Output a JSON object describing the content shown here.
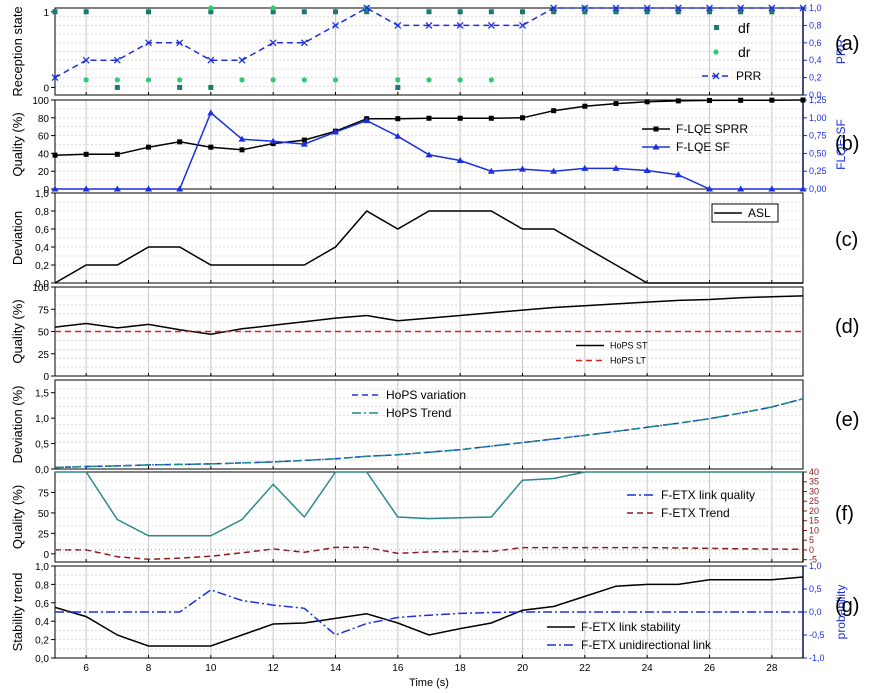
{
  "figure": {
    "xlabel": "Time (s)"
  },
  "chart_data": [
    {
      "type": "scatter",
      "panel_label": "(a)",
      "ylabel": "Reception state",
      "ylabel_right": "PRR",
      "xlim": [
        5,
        29
      ],
      "ylim": [
        -0.1,
        1.05
      ],
      "yticks": [
        0,
        1
      ],
      "y2lim": [
        0.0,
        1.0
      ],
      "y2ticks": [
        "0,0",
        "0,2",
        "0,4",
        "0,6",
        "0,8",
        "1,0"
      ],
      "legend": "right",
      "series": [
        {
          "name": "df",
          "kind": "points",
          "color": "#1a7a6e",
          "axis": "left",
          "x": [
            5,
            6,
            8,
            10,
            12,
            13,
            14,
            15,
            17,
            18,
            19,
            20,
            21,
            22,
            23,
            24,
            25,
            26,
            27,
            28,
            7,
            9,
            10,
            16
          ],
          "y": [
            1,
            1,
            1,
            1,
            1,
            1,
            1,
            1,
            1,
            1,
            1,
            1,
            1,
            1,
            1,
            1,
            1,
            1,
            1,
            1,
            0,
            0,
            0,
            0
          ]
        },
        {
          "name": "dr",
          "kind": "points",
          "color": "#2ecc71",
          "axis": "left",
          "x": [
            10,
            12,
            15,
            22,
            6,
            7,
            8,
            9,
            11,
            12,
            13,
            14,
            16,
            17,
            18,
            19
          ],
          "y": [
            1.05,
            1.05,
            1.05,
            1.05,
            0.1,
            0.1,
            0.1,
            0.1,
            0.1,
            0.1,
            0.1,
            0.1,
            0.1,
            0.1,
            0.1,
            0.1
          ]
        },
        {
          "name": "PRR",
          "kind": "dashed-x",
          "color": "#1b2fe0",
          "axis": "right",
          "x": [
            5,
            6,
            7,
            8,
            9,
            10,
            11,
            12,
            13,
            14,
            15,
            16,
            17,
            18,
            19,
            20,
            21,
            22,
            23,
            24,
            25,
            26,
            27,
            28,
            29
          ],
          "y": [
            0.2,
            0.4,
            0.4,
            0.6,
            0.6,
            0.4,
            0.4,
            0.6,
            0.6,
            0.8,
            1.0,
            0.8,
            0.8,
            0.8,
            0.8,
            0.8,
            1.0,
            1.0,
            1.0,
            1.0,
            1.0,
            1.0,
            1.0,
            1.0,
            1.0
          ]
        }
      ]
    },
    {
      "type": "line",
      "panel_label": "(b)",
      "ylabel": "Quality (%)",
      "ylabel_right": "FLQE-SF",
      "xlim": [
        5,
        29
      ],
      "ylim": [
        0,
        100
      ],
      "yticks": [
        0,
        20,
        40,
        60,
        80,
        100
      ],
      "y2lim": [
        0,
        1.25
      ],
      "y2ticks": [
        "0,00",
        "0,25",
        "0,50",
        "0,75",
        "1,00",
        "1,25"
      ],
      "legend": "right",
      "series": [
        {
          "name": "F-LQE SPRR",
          "kind": "solid-square",
          "color": "#000000",
          "axis": "left",
          "x": [
            5,
            6,
            7,
            8,
            9,
            10,
            11,
            12,
            13,
            14,
            15,
            16,
            17,
            18,
            19,
            20,
            21,
            22,
            23,
            24,
            25,
            26,
            27,
            28,
            29
          ],
          "y": [
            38,
            39,
            39,
            47,
            53,
            47,
            44,
            51,
            55,
            65,
            79,
            79,
            79.5,
            79.5,
            79.5,
            80,
            88,
            93,
            96,
            98,
            99,
            99.5,
            99.7,
            99.8,
            100
          ]
        },
        {
          "name": "F-LQE SF",
          "kind": "solid-triangle",
          "color": "#1b2fe0",
          "axis": "right",
          "x": [
            5,
            6,
            7,
            8,
            9,
            10,
            11,
            12,
            13,
            14,
            15,
            16,
            17,
            18,
            19,
            20,
            21,
            22,
            23,
            24,
            25,
            26,
            27,
            28,
            29
          ],
          "y": [
            0,
            0,
            0,
            0,
            0,
            1.07,
            0.7,
            0.67,
            0.63,
            0.8,
            0.96,
            0.74,
            0.48,
            0.4,
            0.25,
            0.28,
            0.25,
            0.29,
            0.29,
            0.26,
            0.2,
            0,
            0,
            0,
            0
          ]
        }
      ]
    },
    {
      "type": "line",
      "panel_label": "(c)",
      "ylabel": "Deviation",
      "xlim": [
        5,
        29
      ],
      "ylim": [
        0,
        1.0
      ],
      "yticks": [
        "0,0",
        "0,2",
        "0,4",
        "0,6",
        "0,8",
        "1,0"
      ],
      "legend": "top-right",
      "series": [
        {
          "name": "ASL",
          "kind": "solid",
          "color": "#000000",
          "x": [
            5,
            6,
            7,
            8,
            9,
            10,
            11,
            12,
            13,
            14,
            15,
            16,
            17,
            18,
            19,
            20,
            21,
            22,
            23,
            24,
            25,
            26,
            27,
            28,
            29
          ],
          "y": [
            0,
            0.2,
            0.2,
            0.4,
            0.4,
            0.2,
            0.2,
            0.2,
            0.2,
            0.4,
            0.8,
            0.6,
            0.8,
            0.8,
            0.8,
            0.6,
            0.6,
            0.4,
            0.2,
            0,
            0,
            0,
            0,
            0,
            0
          ]
        }
      ]
    },
    {
      "type": "line",
      "panel_label": "(d)",
      "ylabel": "Quality (%)",
      "xlim": [
        5,
        29
      ],
      "ylim": [
        0,
        100
      ],
      "yticks": [
        0,
        25,
        50,
        75,
        100
      ],
      "legend": "bottom-right",
      "series": [
        {
          "name": "HoPS ST",
          "kind": "solid",
          "color": "#000000",
          "x": [
            5,
            6,
            7,
            8,
            9,
            10,
            11,
            12,
            13,
            14,
            15,
            16,
            17,
            18,
            19,
            20,
            21,
            22,
            23,
            24,
            25,
            26,
            27,
            28,
            29
          ],
          "y": [
            55,
            59,
            54,
            58,
            52,
            47,
            53,
            57,
            61,
            65,
            68,
            62,
            65,
            68,
            71,
            74,
            77,
            79,
            81,
            83,
            85,
            86,
            88,
            89,
            90
          ]
        },
        {
          "name": "HoPS LT",
          "kind": "dashed",
          "color": "#e02020",
          "x": [
            5,
            29
          ],
          "y": [
            50,
            50
          ]
        }
      ]
    },
    {
      "type": "line",
      "panel_label": "(e)",
      "ylabel": "Deviation (%)",
      "xlim": [
        5,
        29
      ],
      "ylim": [
        0,
        1.75
      ],
      "yticks": [
        "0,0",
        "0,5",
        "1,0",
        "1,5"
      ],
      "legend": "top-center",
      "series": [
        {
          "name": "HoPS variation",
          "kind": "dashed",
          "color": "#1b2fe0",
          "x": [
            5,
            6,
            7,
            8,
            9,
            10,
            11,
            12,
            13,
            14,
            15,
            16,
            17,
            18,
            19,
            20,
            21,
            22,
            23,
            24,
            25,
            26,
            27,
            28,
            29
          ],
          "y": [
            0.03,
            0.05,
            0.06,
            0.08,
            0.09,
            0.1,
            0.12,
            0.14,
            0.17,
            0.2,
            0.25,
            0.28,
            0.33,
            0.38,
            0.45,
            0.52,
            0.59,
            0.66,
            0.74,
            0.82,
            0.9,
            0.99,
            1.1,
            1.22,
            1.38
          ]
        },
        {
          "name": "HoPS Trend",
          "kind": "dashdot",
          "color": "#1a8a8a",
          "x": [
            5,
            6,
            7,
            8,
            9,
            10,
            11,
            12,
            13,
            14,
            15,
            16,
            17,
            18,
            19,
            20,
            21,
            22,
            23,
            24,
            25,
            26,
            27,
            28,
            29
          ],
          "y": [
            0.03,
            0.05,
            0.06,
            0.08,
            0.09,
            0.1,
            0.12,
            0.14,
            0.17,
            0.2,
            0.25,
            0.28,
            0.33,
            0.38,
            0.45,
            0.52,
            0.59,
            0.66,
            0.74,
            0.82,
            0.9,
            0.99,
            1.1,
            1.22,
            1.38
          ]
        }
      ]
    },
    {
      "type": "line",
      "panel_label": "(f)",
      "ylabel": "Quality (%)",
      "xlim": [
        5,
        29
      ],
      "ylim": [
        -10,
        100
      ],
      "yticks": [
        0,
        25,
        50,
        75
      ],
      "y2lim": [
        -6.2,
        40
      ],
      "y2ticks": [
        "-5",
        "0",
        "5",
        "10",
        "15",
        "20",
        "25",
        "30",
        "35",
        "40"
      ],
      "legend": "right",
      "series": [
        {
          "name": "F-ETX link quality",
          "kind": "dashdot",
          "color": "#1b2fe0",
          "axis": "left",
          "x": [],
          "y": []
        },
        {
          "name": "F-ETX Trend",
          "kind": "dashed",
          "color": "#8b1a1a",
          "axis": "right",
          "x": [
            5,
            6,
            7,
            8,
            9,
            10,
            11,
            12,
            13,
            14,
            15,
            16,
            17,
            18,
            19,
            20,
            21,
            22,
            23,
            24,
            25,
            26,
            27,
            28,
            29
          ],
          "y": [
            0,
            0,
            -3.5,
            -4.8,
            -4.2,
            -3.2,
            -1.5,
            0.5,
            -1.2,
            1.3,
            1.3,
            -1.8,
            -1,
            -0.8,
            -0.8,
            1.2,
            1.2,
            1.2,
            1.2,
            1.2,
            1,
            0.8,
            0.6,
            0.4,
            0.3
          ]
        },
        {
          "name": "",
          "kind": "solid",
          "color": "#2a8a8a",
          "axis": "left",
          "x": [
            5,
            6,
            7,
            8,
            9,
            10,
            11,
            12,
            13,
            14,
            15,
            16,
            17,
            18,
            19,
            20,
            21,
            22,
            23,
            24,
            25,
            26,
            27,
            28,
            29
          ],
          "y": [
            100,
            100,
            42,
            22,
            22,
            22,
            42,
            85,
            45,
            100,
            100,
            45,
            43,
            44,
            45,
            90,
            92,
            100,
            100,
            100,
            100,
            100,
            100,
            100,
            100
          ]
        }
      ]
    },
    {
      "type": "line",
      "panel_label": "(g)",
      "ylabel": "Stability trend",
      "ylabel_right": "probability",
      "xlim": [
        5,
        29
      ],
      "ylim": [
        0,
        1.0
      ],
      "yticks": [
        "0,0",
        "0,2",
        "0,4",
        "0,6",
        "0,8",
        "1,0"
      ],
      "y2lim": [
        -1,
        1
      ],
      "y2ticks": [
        "-1,0",
        "-0,5",
        "0,0",
        "0,5",
        "1,0"
      ],
      "legend": "bottom-right",
      "series": [
        {
          "name": "F-ETX link stability",
          "kind": "solid",
          "color": "#000000",
          "axis": "left",
          "x": [
            5,
            6,
            7,
            8,
            9,
            10,
            11,
            12,
            13,
            14,
            15,
            16,
            17,
            18,
            19,
            20,
            21,
            22,
            23,
            24,
            25,
            26,
            27,
            28,
            29
          ],
          "y": [
            0.55,
            0.45,
            0.25,
            0.13,
            0.13,
            0.13,
            0.25,
            0.37,
            0.38,
            0.43,
            0.48,
            0.38,
            0.25,
            0.32,
            0.38,
            0.52,
            0.56,
            0.67,
            0.78,
            0.8,
            0.8,
            0.85,
            0.85,
            0.85,
            0.88
          ]
        },
        {
          "name": "F-ETX unidirectional link",
          "kind": "dashdot",
          "color": "#1b2fe0",
          "axis": "right",
          "x": [
            5,
            6,
            7,
            8,
            9,
            10,
            11,
            12,
            13,
            14,
            15,
            16,
            17,
            18,
            19,
            20,
            21,
            22,
            23,
            24,
            25,
            26,
            27,
            28,
            29
          ],
          "y": [
            0,
            0,
            0,
            0,
            0,
            0.48,
            0.25,
            0.15,
            0.08,
            -0.5,
            -0.25,
            -0.12,
            -0.07,
            -0.03,
            -0.01,
            0,
            0,
            0,
            0,
            0,
            0,
            0,
            0,
            0,
            0
          ]
        }
      ]
    }
  ],
  "xaxis": {
    "ticks": [
      6,
      8,
      10,
      12,
      14,
      16,
      18,
      20,
      22,
      24,
      26,
      28
    ]
  }
}
